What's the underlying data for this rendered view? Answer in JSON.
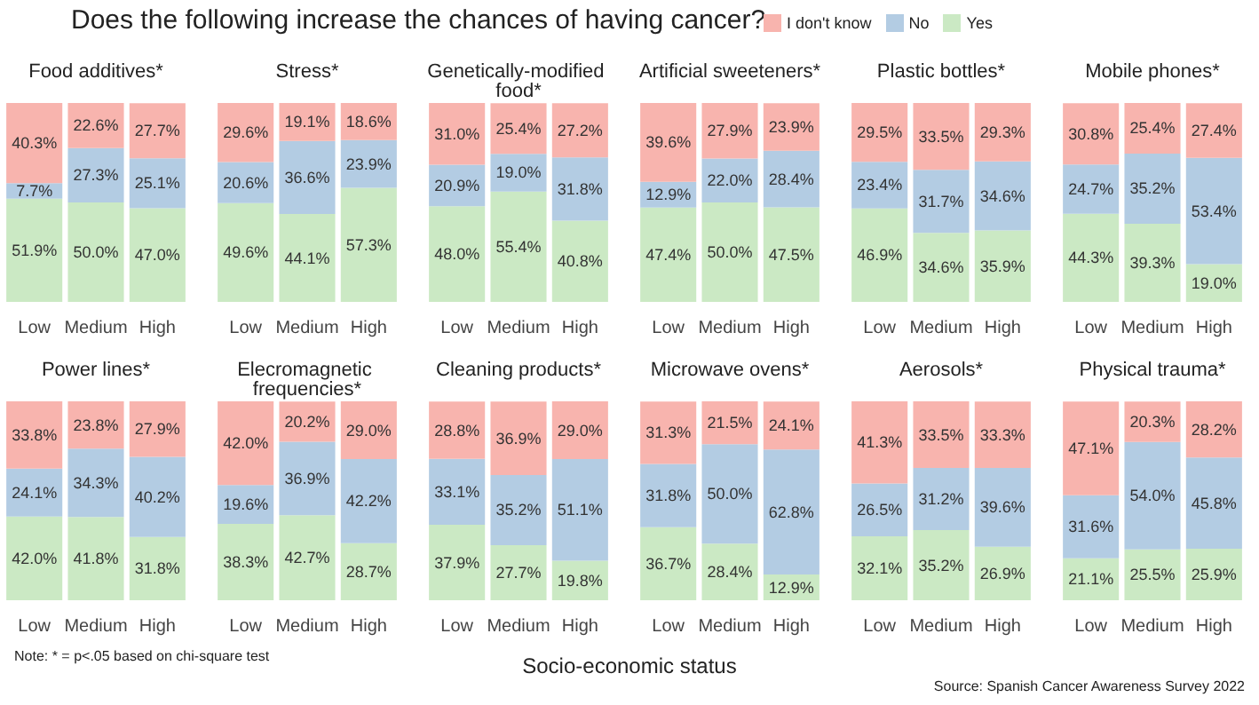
{
  "chart_data": [
    {
      "type": "bar",
      "title": "Food additives*",
      "stacked": true,
      "tick_labels": "x",
      "legend": "top right",
      "categories": [
        "Low",
        "Medium",
        "High"
      ],
      "annotations": [
        "Does the following increase the chances of having cancer?",
        "Socio-economic status",
        "Note: * = p<.05 based on chi-square test",
        "Source: Spanish Cancer Awareness Survey 2022"
      ],
      "series": [
        {
          "name": "Yes",
          "color": "#cbe9c4",
          "values": [
            51.9,
            50.0,
            47.0
          ],
          "value_labels": [
            "51.9%",
            "50.0%",
            "47.0%"
          ]
        },
        {
          "name": "No",
          "color": "#b3cce3",
          "values": [
            7.7,
            27.3,
            25.1
          ],
          "value_labels": [
            "7.7%",
            "27.3%",
            "25.1%"
          ]
        },
        {
          "name": "I don't know",
          "color": "#f8b4ae",
          "values": [
            40.3,
            22.6,
            27.7
          ],
          "value_labels": [
            "40.3%",
            "22.6%",
            "27.7%"
          ]
        }
      ]
    },
    {
      "type": "bar",
      "title": "Stress*",
      "stacked": true,
      "tick_labels": "x",
      "categories": [
        "Low",
        "Medium",
        "High"
      ],
      "series": [
        {
          "color": "#cbe9c4",
          "values": [
            49.6,
            44.1,
            57.3
          ],
          "value_labels": [
            "49.6%",
            "44.1%",
            "57.3%"
          ]
        },
        {
          "color": "#b3cce3",
          "values": [
            20.6,
            36.6,
            23.9
          ],
          "value_labels": [
            "20.6%",
            "36.6%",
            "23.9%"
          ]
        },
        {
          "color": "#f8b4ae",
          "values": [
            29.6,
            19.1,
            18.6
          ],
          "value_labels": [
            "29.6%",
            "19.1%",
            "18.6%"
          ]
        }
      ]
    },
    {
      "type": "bar",
      "title": "Genetically-modified food*",
      "stacked": true,
      "tick_labels": "x",
      "categories": [
        "Low",
        "Medium",
        "High"
      ],
      "series": [
        {
          "color": "#cbe9c4",
          "values": [
            48.0,
            55.4,
            40.8
          ],
          "value_labels": [
            "48.0%",
            "55.4%",
            "40.8%"
          ]
        },
        {
          "color": "#b3cce3",
          "values": [
            20.9,
            19.0,
            31.8
          ],
          "value_labels": [
            "20.9%",
            "19.0%",
            "31.8%"
          ]
        },
        {
          "color": "#f8b4ae",
          "values": [
            31.0,
            25.4,
            27.2
          ],
          "value_labels": [
            "31.0%",
            "25.4%",
            "27.2%"
          ]
        }
      ]
    },
    {
      "type": "bar",
      "title": "Artificial sweeteners*",
      "stacked": true,
      "tick_labels": "x",
      "categories": [
        "Low",
        "Medium",
        "High"
      ],
      "series": [
        {
          "color": "#cbe9c4",
          "values": [
            47.4,
            50.0,
            47.5
          ],
          "value_labels": [
            "47.4%",
            "50.0%",
            "47.5%"
          ]
        },
        {
          "color": "#b3cce3",
          "values": [
            12.9,
            22.0,
            28.4
          ],
          "value_labels": [
            "12.9%",
            "22.0%",
            "28.4%"
          ]
        },
        {
          "color": "#f8b4ae",
          "values": [
            39.6,
            27.9,
            23.9
          ],
          "value_labels": [
            "39.6%",
            "27.9%",
            "23.9%"
          ]
        }
      ]
    },
    {
      "type": "bar",
      "title": "Plastic bottles*",
      "stacked": true,
      "tick_labels": "x",
      "categories": [
        "Low",
        "Medium",
        "High"
      ],
      "series": [
        {
          "color": "#cbe9c4",
          "values": [
            46.9,
            34.6,
            35.9
          ],
          "value_labels": [
            "46.9%",
            "34.6%",
            "35.9%"
          ]
        },
        {
          "color": "#b3cce3",
          "values": [
            23.4,
            31.7,
            34.6
          ],
          "value_labels": [
            "23.4%",
            "31.7%",
            "34.6%"
          ]
        },
        {
          "color": "#f8b4ae",
          "values": [
            29.5,
            33.5,
            29.3
          ],
          "value_labels": [
            "29.5%",
            "33.5%",
            "29.3%"
          ]
        }
      ]
    },
    {
      "type": "bar",
      "title": "Mobile phones*",
      "stacked": true,
      "tick_labels": "x",
      "categories": [
        "Low",
        "Medium",
        "High"
      ],
      "series": [
        {
          "color": "#cbe9c4",
          "values": [
            44.3,
            39.3,
            19.0
          ],
          "value_labels": [
            "44.3%",
            "39.3%",
            "19.0%"
          ]
        },
        {
          "color": "#b3cce3",
          "values": [
            24.7,
            35.2,
            53.4
          ],
          "value_labels": [
            "24.7%",
            "35.2%",
            "53.4%"
          ]
        },
        {
          "color": "#f8b4ae",
          "values": [
            30.8,
            25.4,
            27.4
          ],
          "value_labels": [
            "30.8%",
            "25.4%",
            "27.4%"
          ]
        }
      ]
    },
    {
      "type": "bar",
      "title": "Power lines*",
      "stacked": true,
      "tick_labels": "x",
      "categories": [
        "Low",
        "Medium",
        "High"
      ],
      "series": [
        {
          "color": "#cbe9c4",
          "values": [
            42.0,
            41.8,
            31.8
          ],
          "value_labels": [
            "42.0%",
            "41.8%",
            "31.8%"
          ]
        },
        {
          "color": "#b3cce3",
          "values": [
            24.1,
            34.3,
            40.2
          ],
          "value_labels": [
            "24.1%",
            "34.3%",
            "40.2%"
          ]
        },
        {
          "color": "#f8b4ae",
          "values": [
            33.8,
            23.8,
            27.9
          ],
          "value_labels": [
            "33.8%",
            "23.8%",
            "27.9%"
          ]
        }
      ]
    },
    {
      "type": "bar",
      "title": "Elecromagnetic frequencies*",
      "stacked": true,
      "tick_labels": "x",
      "categories": [
        "Low",
        "Medium",
        "High"
      ],
      "series": [
        {
          "color": "#cbe9c4",
          "values": [
            38.3,
            42.7,
            28.7
          ],
          "value_labels": [
            "38.3%",
            "42.7%",
            "28.7%"
          ]
        },
        {
          "color": "#b3cce3",
          "values": [
            19.6,
            36.9,
            42.2
          ],
          "value_labels": [
            "19.6%",
            "36.9%",
            "42.2%"
          ]
        },
        {
          "color": "#f8b4ae",
          "values": [
            42.0,
            20.2,
            29.0
          ],
          "value_labels": [
            "42.0%",
            "20.2%",
            "29.0%"
          ]
        }
      ]
    },
    {
      "type": "bar",
      "title": "Cleaning products*",
      "stacked": true,
      "tick_labels": "x",
      "categories": [
        "Low",
        "Medium",
        "High"
      ],
      "series": [
        {
          "color": "#cbe9c4",
          "values": [
            37.9,
            27.7,
            19.8
          ],
          "value_labels": [
            "37.9%",
            "27.7%",
            "19.8%"
          ]
        },
        {
          "color": "#b3cce3",
          "values": [
            33.1,
            35.2,
            51.1
          ],
          "value_labels": [
            "33.1%",
            "35.2%",
            "51.1%"
          ]
        },
        {
          "color": "#f8b4ae",
          "values": [
            28.8,
            36.9,
            29.0
          ],
          "value_labels": [
            "28.8%",
            "36.9%",
            "29.0%"
          ]
        }
      ]
    },
    {
      "type": "bar",
      "title": "Microwave ovens*",
      "stacked": true,
      "tick_labels": "x",
      "categories": [
        "Low",
        "Medium",
        "High"
      ],
      "series": [
        {
          "color": "#cbe9c4",
          "values": [
            36.7,
            28.4,
            12.9
          ],
          "value_labels": [
            "36.7%",
            "28.4%",
            "12.9%"
          ]
        },
        {
          "color": "#b3cce3",
          "values": [
            31.8,
            50.0,
            62.8
          ],
          "value_labels": [
            "31.8%",
            "50.0%",
            "62.8%"
          ]
        },
        {
          "color": "#f8b4ae",
          "values": [
            31.3,
            21.5,
            24.1
          ],
          "value_labels": [
            "31.3%",
            "21.5%",
            "24.1%"
          ]
        }
      ]
    },
    {
      "type": "bar",
      "title": "Aerosols*",
      "stacked": true,
      "tick_labels": "x",
      "categories": [
        "Low",
        "Medium",
        "High"
      ],
      "series": [
        {
          "color": "#cbe9c4",
          "values": [
            32.1,
            35.2,
            26.9
          ],
          "value_labels": [
            "32.1%",
            "35.2%",
            "26.9%"
          ]
        },
        {
          "color": "#b3cce3",
          "values": [
            26.5,
            31.2,
            39.6
          ],
          "value_labels": [
            "26.5%",
            "31.2%",
            "39.6%"
          ]
        },
        {
          "color": "#f8b4ae",
          "values": [
            41.3,
            33.5,
            33.3
          ],
          "value_labels": [
            "41.3%",
            "33.5%",
            "33.3%"
          ]
        }
      ]
    },
    {
      "type": "bar",
      "title": "Physical trauma*",
      "stacked": true,
      "tick_labels": "x",
      "categories": [
        "Low",
        "Medium",
        "High"
      ],
      "series": [
        {
          "color": "#cbe9c4",
          "values": [
            21.1,
            25.5,
            25.9
          ],
          "value_labels": [
            "21.1%",
            "25.5%",
            "25.9%"
          ]
        },
        {
          "color": "#b3cce3",
          "values": [
            31.6,
            54.0,
            45.8
          ],
          "value_labels": [
            "31.6%",
            "54.0%",
            "45.8%"
          ]
        },
        {
          "color": "#f8b4ae",
          "values": [
            47.1,
            20.3,
            28.2
          ],
          "value_labels": [
            "47.1%",
            "20.3%",
            "28.2%"
          ]
        }
      ]
    }
  ]
}
